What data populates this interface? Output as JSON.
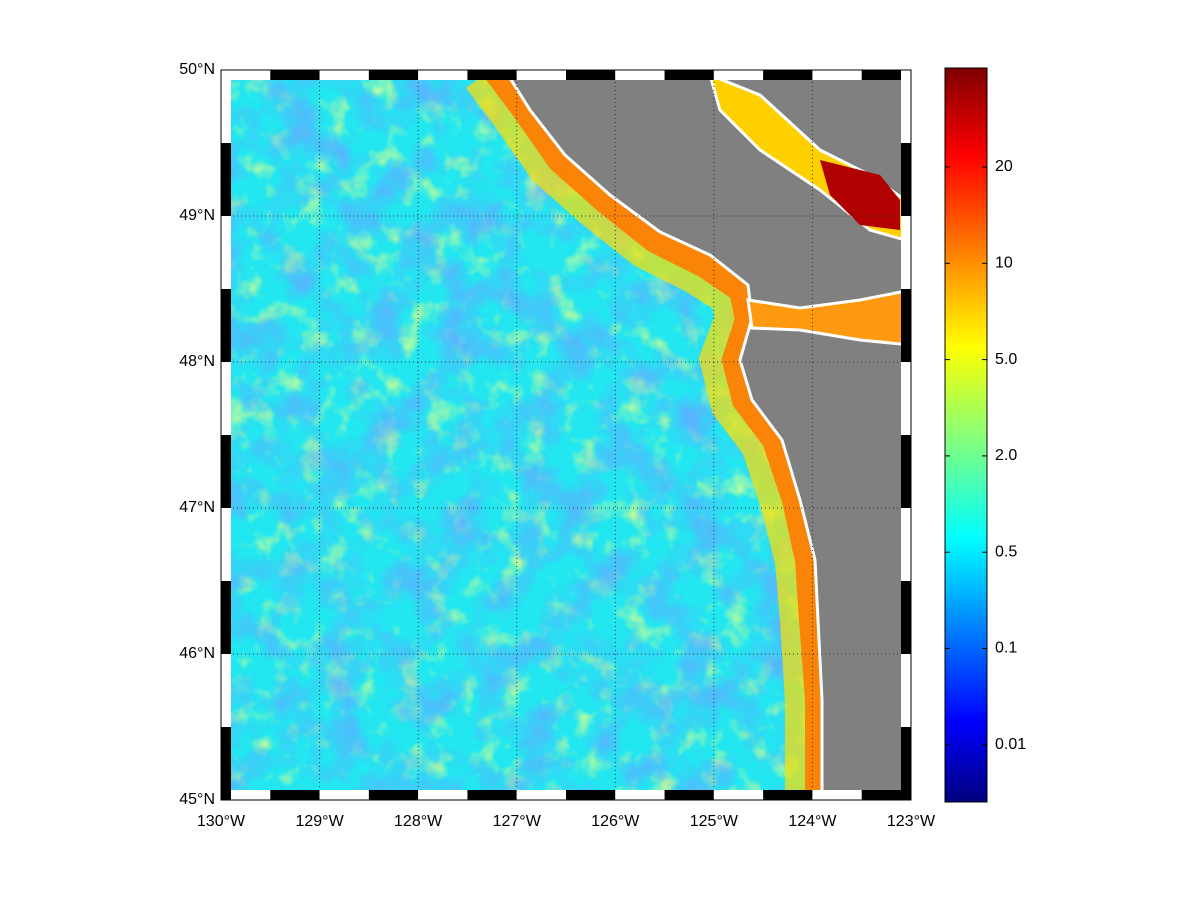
{
  "map": {
    "lon_labels": [
      "130°W",
      "129°W",
      "128°W",
      "127°W",
      "126°W",
      "125°W",
      "124°W",
      "123°W"
    ],
    "lat_labels": [
      "50°N",
      "49°N",
      "48°N",
      "47°N",
      "46°N",
      "45°N"
    ],
    "colorbar_labels": [
      "20",
      "10",
      "5.0",
      "2.0",
      "0.5",
      "0.1",
      "0.01"
    ]
  }
}
